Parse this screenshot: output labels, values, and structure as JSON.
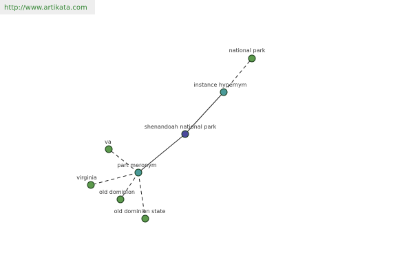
{
  "header": {
    "url": "http://www.artikata.com"
  },
  "nodes": [
    {
      "label": "national park"
    },
    {
      "label": "instance hypernym"
    },
    {
      "label": "shenandoah national park"
    },
    {
      "label": "va"
    },
    {
      "label": "part meronym"
    },
    {
      "label": "virginia"
    },
    {
      "label": "old dominion"
    },
    {
      "label": "old dominion state"
    }
  ]
}
